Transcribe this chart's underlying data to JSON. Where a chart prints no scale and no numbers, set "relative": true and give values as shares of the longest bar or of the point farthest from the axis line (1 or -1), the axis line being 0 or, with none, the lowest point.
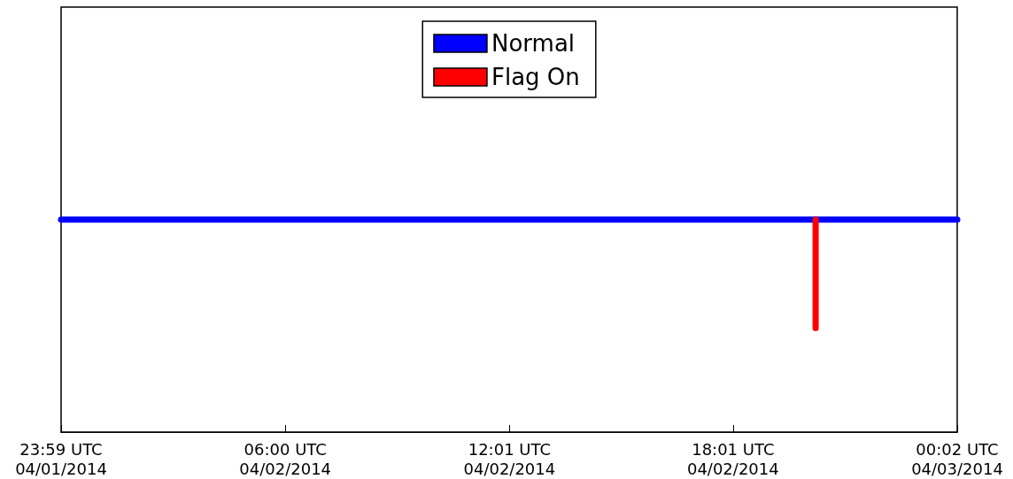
{
  "chart_data": {
    "type": "line",
    "relative": true,
    "legend": "top",
    "grid": false,
    "marker": "none",
    "line_style": "solid",
    "xlim": [
      "2014-04-01T23:59",
      "2014-04-03T00:02"
    ],
    "xticks": [
      {
        "value": "2014-04-01T23:59",
        "label": "23:59 UTC\n04/01/2014"
      },
      {
        "value": "2014-04-02T06:00",
        "label": "06:00 UTC\n04/02/2014"
      },
      {
        "value": "2014-04-02T12:01",
        "label": "12:01 UTC\n04/02/2014"
      },
      {
        "value": "2014-04-02T18:01",
        "label": "18:01 UTC\n04/02/2014"
      },
      {
        "value": "2014-04-03T00:02",
        "label": "00:02 UTC\n04/03/2014"
      }
    ],
    "series": [
      {
        "name": "Normal",
        "color": "#0000ff",
        "x": [
          "2014-04-01T23:59",
          "2014-04-03T00:02"
        ],
        "values": [
          1,
          1
        ]
      },
      {
        "name": "Flag On",
        "color": "#ff0000",
        "x": [
          "2014-04-02T20:14",
          "2014-04-02T20:14"
        ],
        "values": [
          1,
          0.49
        ]
      }
    ]
  }
}
